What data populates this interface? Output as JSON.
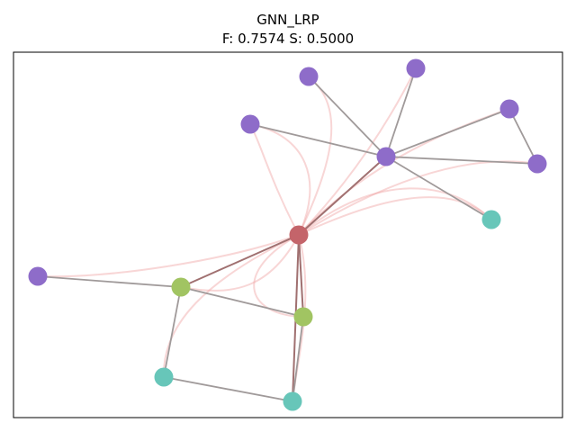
{
  "title": "GNN_LRP",
  "subtitle": "F: 0.7574  S: 0.5000",
  "colors": {
    "purple": "#8e6cc9",
    "teal": "#67c6b9",
    "green": "#a1c462",
    "red": "#c4646a",
    "edge": "#a09a9a",
    "relevance": "#f0a3a3"
  },
  "nodes": [
    {
      "id": "n0",
      "color": "purple"
    },
    {
      "id": "n1",
      "color": "purple"
    },
    {
      "id": "n2",
      "color": "purple"
    },
    {
      "id": "n3",
      "color": "purple"
    },
    {
      "id": "n4",
      "color": "purple"
    },
    {
      "id": "n5",
      "color": "purple"
    },
    {
      "id": "n6",
      "color": "teal"
    },
    {
      "id": "n7",
      "color": "red"
    },
    {
      "id": "n8",
      "color": "purple"
    },
    {
      "id": "n9",
      "color": "green"
    },
    {
      "id": "n10",
      "color": "green"
    },
    {
      "id": "n11",
      "color": "teal"
    },
    {
      "id": "n12",
      "color": "teal"
    }
  ],
  "edges": [
    [
      "n5",
      "n0"
    ],
    [
      "n5",
      "n1"
    ],
    [
      "n5",
      "n2"
    ],
    [
      "n5",
      "n3"
    ],
    [
      "n5",
      "n4"
    ],
    [
      "n5",
      "n6"
    ],
    [
      "n5",
      "n7"
    ],
    [
      "n3",
      "n4"
    ],
    [
      "n7",
      "n9"
    ],
    [
      "n7",
      "n10"
    ],
    [
      "n7",
      "n12"
    ],
    [
      "n8",
      "n9"
    ],
    [
      "n9",
      "n10"
    ],
    [
      "n9",
      "n11"
    ],
    [
      "n11",
      "n12"
    ],
    [
      "n10",
      "n12"
    ]
  ]
}
